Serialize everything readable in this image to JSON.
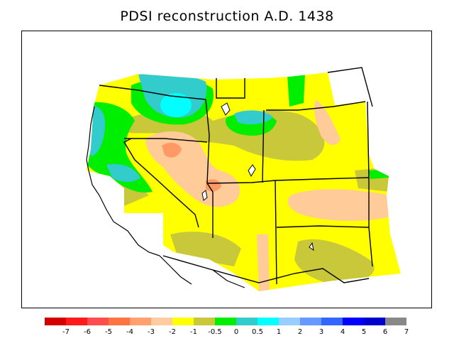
{
  "title": "PDSI reconstruction A.D. 1438",
  "legend": {
    "colors": [
      "#d40000",
      "#ff1a1a",
      "#ff4d4d",
      "#ff7340",
      "#ffa070",
      "#ffcba0",
      "#ffff00",
      "#c8c83a",
      "#00ee00",
      "#33cccc",
      "#00ffff",
      "#99ccff",
      "#6699ff",
      "#3366ff",
      "#0000ff",
      "#0000cc",
      "#888888"
    ],
    "tick_labels": [
      "-7",
      "-6",
      "-5",
      "-4",
      "-3",
      "-2",
      "-1",
      "-0.5",
      "0",
      "0.5",
      "1",
      "2",
      "3",
      "4",
      "5",
      "6",
      "7"
    ]
  },
  "map_colors": {
    "dry_strong": "#ff9966",
    "dry": "#ffcc99",
    "near_normal_dry": "#ffff00",
    "slightly_dry": "#c8c83a",
    "slightly_wet": "#00ee00",
    "wet": "#33cccc",
    "very_wet": "#00ffff",
    "boundary": "#000000"
  }
}
